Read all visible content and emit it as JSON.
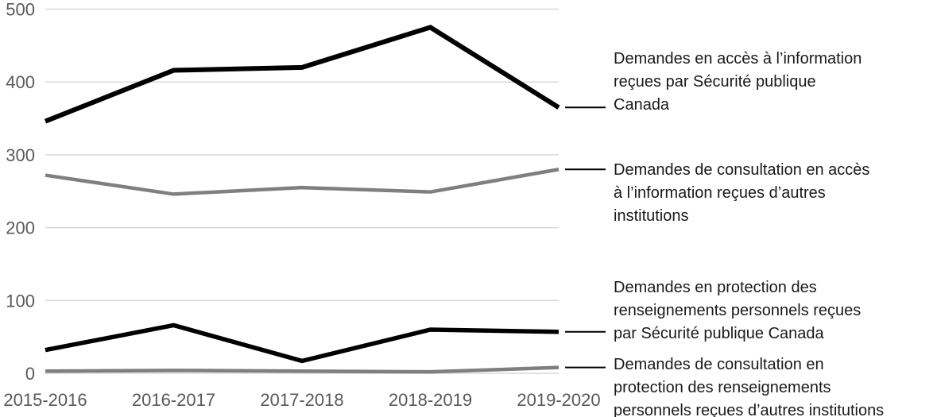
{
  "chart_data": {
    "type": "line",
    "title": "",
    "xlabel": "",
    "ylabel": "",
    "categories": [
      "2015-2016",
      "2016-2017",
      "2017-2018",
      "2018-2019",
      "2019-2020"
    ],
    "y_ticks": [
      0,
      100,
      200,
      300,
      400,
      500
    ],
    "ylim": [
      0,
      500
    ],
    "grid": true,
    "legend_position": "right-annotations",
    "series": [
      {
        "name": "Demandes en accès à l’information reçues par Sécurité publique Canada",
        "color": "#000000",
        "values": [
          346,
          416,
          420,
          475,
          365
        ]
      },
      {
        "name": "Demandes de consultation en accès à l’information reçues d’autres institutions",
        "color": "#7f7f7f",
        "values": [
          272,
          246,
          255,
          249,
          280
        ]
      },
      {
        "name": "Demandes en protection des renseignements personnels reçues par Sécurité publique Canada",
        "color": "#000000",
        "values": [
          32,
          66,
          17,
          60,
          57
        ]
      },
      {
        "name": "Demandes de consultation en protection des renseignements personnels reçues d’autres institutions",
        "color": "#7f7f7f",
        "values": [
          3,
          4,
          3,
          2,
          8
        ]
      }
    ]
  },
  "legend": [
    {
      "text": "Demandes en accès à l’information\nreçues par Sécurité publique\nCanada"
    },
    {
      "text": "Demandes de consultation en accès\nà l’information reçues d’autres\ninstitutions"
    },
    {
      "text": "Demandes en protection des\nrenseignements personnels reçues\npar Sécurité publique Canada"
    },
    {
      "text": "Demandes de consultation en\nprotection des renseignements\npersonnels reçues d’autres institutions"
    }
  ],
  "colors": {
    "gridline": "#d9d9d9",
    "axis_text": "#595959",
    "legend_text": "#1a1a1a",
    "leader_line": "#000000",
    "series_black": "#000000",
    "series_gray": "#7f7f7f"
  }
}
